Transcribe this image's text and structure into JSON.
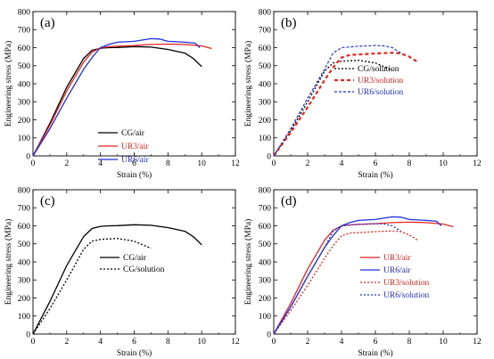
{
  "chart_data": [
    {
      "type": "line",
      "panel_label": "(a)",
      "xlabel": "Strain (%)",
      "ylabel": "Engineering stress (MPa)",
      "xlim": [
        0,
        12
      ],
      "ylim": [
        0,
        800
      ],
      "xticks": [
        "0",
        "2",
        "4",
        "6",
        "8",
        "10",
        "12"
      ],
      "yticks": [
        "0",
        "100",
        "200",
        "300",
        "400",
        "500",
        "600",
        "700",
        "800"
      ],
      "legend_position": "lower-center",
      "series": [
        {
          "name": "CG/air",
          "color": "#000000",
          "dash": "solid",
          "x": [
            0,
            1,
            2,
            3,
            3.5,
            4,
            4.5,
            5,
            6,
            7,
            8,
            9,
            9.5,
            10
          ],
          "y": [
            0,
            180,
            380,
            540,
            585,
            597,
            600,
            601,
            606,
            603,
            590,
            570,
            540,
            495
          ]
        },
        {
          "name": "UR3/air",
          "color": "#e8231d",
          "dash": "solid",
          "x": [
            0,
            1,
            2,
            3,
            3.5,
            4,
            4.5,
            5,
            6,
            7,
            8,
            9,
            10,
            10.6
          ],
          "y": [
            0,
            170,
            360,
            520,
            575,
            600,
            605,
            608,
            612,
            618,
            620,
            618,
            610,
            595
          ]
        },
        {
          "name": "UR6/air",
          "color": "#1f2ee0",
          "dash": "solid",
          "x": [
            0,
            1,
            2,
            3,
            3.5,
            4,
            4.5,
            5,
            6,
            7,
            7.5,
            8,
            9,
            9.6,
            9.9
          ],
          "y": [
            0,
            150,
            320,
            480,
            545,
            600,
            618,
            630,
            635,
            650,
            648,
            635,
            630,
            625,
            600
          ]
        }
      ]
    },
    {
      "type": "line",
      "panel_label": "(b)",
      "xlabel": "Strain (%)",
      "ylabel": "Engineering stress (MPa)",
      "xlim": [
        0,
        12
      ],
      "ylim": [
        0,
        800
      ],
      "xticks": [
        "0",
        "2",
        "4",
        "6",
        "8",
        "10",
        "12"
      ],
      "yticks": [
        "0",
        "100",
        "200",
        "300",
        "400",
        "500",
        "600",
        "700",
        "800"
      ],
      "legend_position": "center-right",
      "series": [
        {
          "name": "CG/solution",
          "color": "#000000",
          "dash": "dotted",
          "x": [
            0,
            1,
            2,
            3,
            3.5,
            4,
            5,
            6,
            6.5,
            7
          ],
          "y": [
            0,
            140,
            300,
            470,
            515,
            525,
            530,
            515,
            495,
            475
          ]
        },
        {
          "name": "UR3/solution",
          "color": "#e8231d",
          "dash": "dashed-bold",
          "x": [
            0,
            1,
            2,
            3,
            3.5,
            4,
            4.5,
            5,
            6,
            7,
            7.5,
            8,
            8.5
          ],
          "y": [
            0,
            130,
            270,
            420,
            490,
            545,
            560,
            562,
            568,
            572,
            568,
            550,
            520
          ]
        },
        {
          "name": "UR6/solution",
          "color": "#1f2ee0",
          "dash": "dashed",
          "x": [
            0,
            1,
            2,
            3,
            3.5,
            4,
            5,
            6,
            6.5,
            7,
            7.5
          ],
          "y": [
            0,
            150,
            320,
            480,
            570,
            600,
            608,
            612,
            610,
            600,
            570
          ]
        }
      ]
    },
    {
      "type": "line",
      "panel_label": "(c)",
      "xlabel": "Strain (%)",
      "ylabel": "Engineering stress (MPa)",
      "xlim": [
        0,
        12
      ],
      "ylim": [
        0,
        800
      ],
      "xticks": [
        "0",
        "2",
        "4",
        "6",
        "8",
        "10",
        "12"
      ],
      "yticks": [
        "0",
        "100",
        "200",
        "300",
        "400",
        "500",
        "600",
        "700",
        "800"
      ],
      "legend_position": "lower-center",
      "series": [
        {
          "name": "CG/air",
          "color": "#000000",
          "dash": "solid",
          "x": [
            0,
            1,
            2,
            3,
            3.5,
            4,
            4.5,
            5,
            6,
            7,
            8,
            9,
            9.5,
            10
          ],
          "y": [
            0,
            180,
            380,
            540,
            585,
            597,
            600,
            601,
            606,
            603,
            590,
            570,
            540,
            495
          ]
        },
        {
          "name": "CG/solution",
          "color": "#000000",
          "dash": "dotted",
          "x": [
            0,
            1,
            2,
            3,
            3.5,
            4,
            5,
            6,
            6.5,
            7
          ],
          "y": [
            0,
            140,
            300,
            470,
            515,
            525,
            530,
            515,
            495,
            475
          ]
        }
      ]
    },
    {
      "type": "line",
      "panel_label": "(d)",
      "xlabel": "Strain (%)",
      "ylabel": "Engineering stress (MPa)",
      "xlim": [
        0,
        12
      ],
      "ylim": [
        0,
        800
      ],
      "xticks": [
        "0",
        "2",
        "4",
        "6",
        "8",
        "10",
        "12"
      ],
      "yticks": [
        "0",
        "100",
        "200",
        "300",
        "400",
        "500",
        "600",
        "700",
        "800"
      ],
      "legend_position": "lower-right",
      "series": [
        {
          "name": "UR3/air",
          "color": "#e8231d",
          "dash": "solid",
          "x": [
            0,
            1,
            2,
            3,
            3.5,
            4,
            4.5,
            5,
            6,
            7,
            8,
            9,
            10,
            10.6
          ],
          "y": [
            0,
            170,
            360,
            520,
            575,
            600,
            605,
            608,
            612,
            618,
            620,
            618,
            610,
            595
          ]
        },
        {
          "name": "UR6/air",
          "color": "#1f2ee0",
          "dash": "solid",
          "x": [
            0,
            1,
            2,
            3,
            3.5,
            4,
            4.5,
            5,
            6,
            7,
            7.5,
            8,
            9,
            9.6,
            9.9
          ],
          "y": [
            0,
            150,
            320,
            480,
            545,
            600,
            618,
            630,
            635,
            650,
            648,
            635,
            630,
            625,
            600
          ]
        },
        {
          "name": "UR3/solution",
          "color": "#e8231d",
          "dash": "dotted",
          "x": [
            0,
            1,
            2,
            3,
            3.5,
            4,
            4.5,
            5,
            6,
            7,
            7.5,
            8,
            8.5
          ],
          "y": [
            0,
            130,
            270,
            420,
            490,
            545,
            560,
            562,
            568,
            572,
            568,
            550,
            520
          ]
        },
        {
          "name": "UR6/solution",
          "color": "#1f2ee0",
          "dash": "dotted",
          "x": [
            0,
            1,
            2,
            3,
            3.5,
            4,
            5,
            6,
            6.5,
            7,
            7.5
          ],
          "y": [
            0,
            150,
            320,
            480,
            570,
            600,
            608,
            612,
            610,
            600,
            570
          ]
        }
      ]
    }
  ]
}
